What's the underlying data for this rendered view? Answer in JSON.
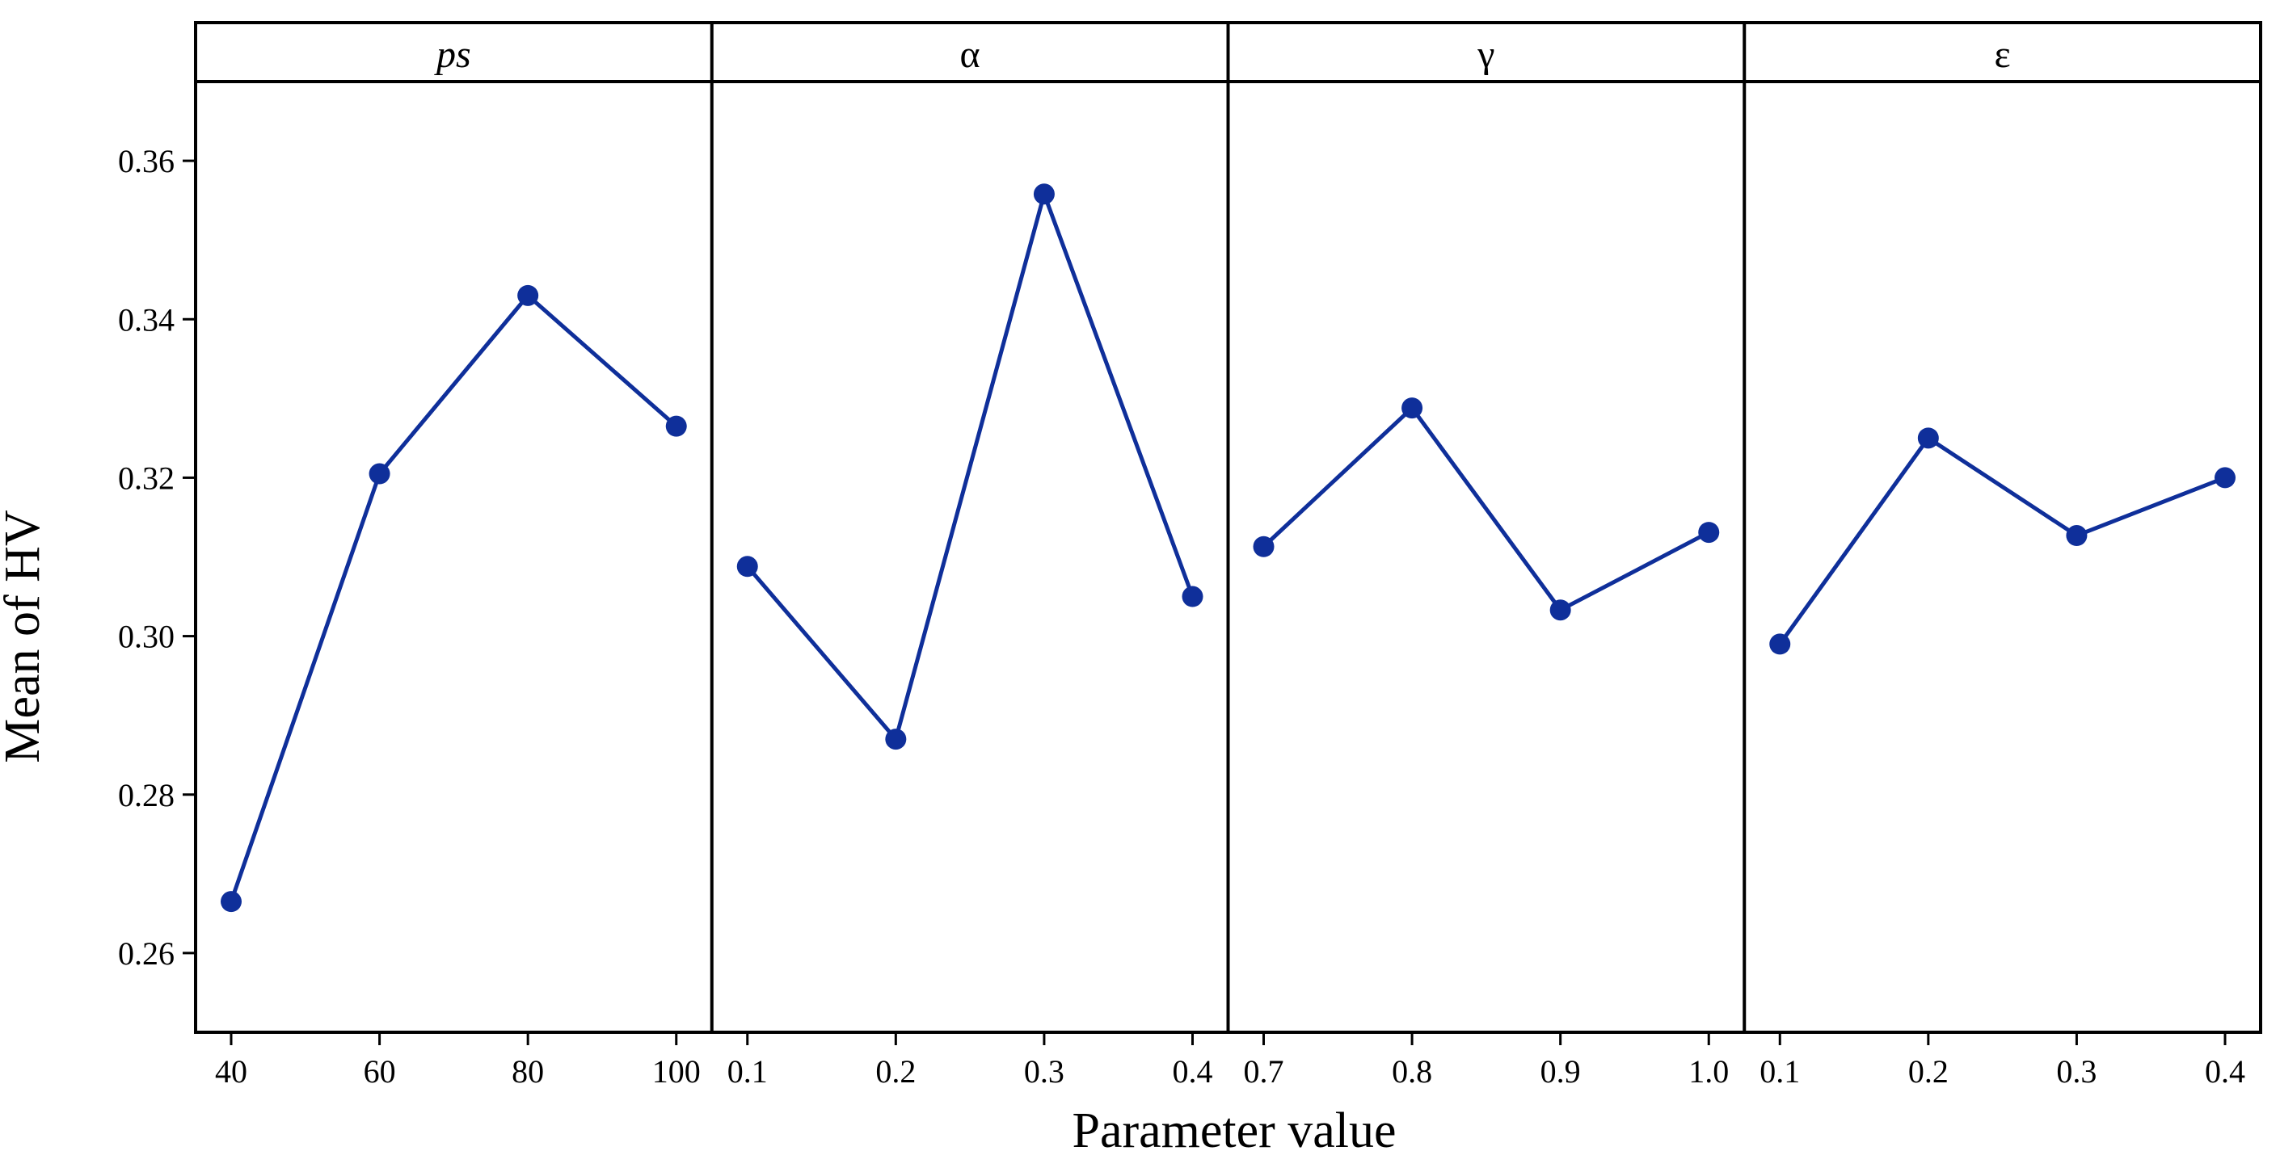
{
  "chart_data": {
    "type": "line",
    "ylabel": "Mean of HV",
    "xlabel": "Parameter value",
    "ylim": [
      0.25,
      0.37
    ],
    "yticks": [
      "0.26",
      "0.28",
      "0.30",
      "0.32",
      "0.34",
      "0.36"
    ],
    "grid": false,
    "legend": "none",
    "colors": {
      "series": "#0f2f9a",
      "frame": "#000000"
    },
    "panels": [
      {
        "title": "ps",
        "title_italic": true,
        "x": [
          "40",
          "60",
          "80",
          "100"
        ],
        "values": [
          0.2665,
          0.3205,
          0.343,
          0.3265
        ]
      },
      {
        "title": "α",
        "title_italic": false,
        "x": [
          "0.1",
          "0.2",
          "0.3",
          "0.4"
        ],
        "values": [
          0.3088,
          0.287,
          0.3558,
          0.305
        ]
      },
      {
        "title": "γ",
        "title_italic": false,
        "x": [
          "0.7",
          "0.8",
          "0.9",
          "1.0"
        ],
        "values": [
          0.3113,
          0.3288,
          0.3033,
          0.3131
        ]
      },
      {
        "title": "ε",
        "title_italic": false,
        "x": [
          "0.1",
          "0.2",
          "0.3",
          "0.4"
        ],
        "values": [
          0.299,
          0.325,
          0.3127,
          0.32
        ]
      }
    ]
  }
}
